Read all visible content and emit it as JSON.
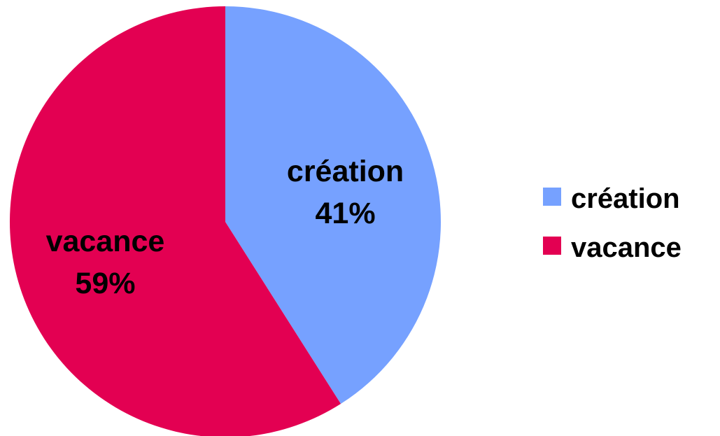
{
  "chart_data": {
    "type": "pie",
    "title": "",
    "slices": [
      {
        "label": "création",
        "value": 41,
        "value_label": "41%",
        "color": "#76A1FF"
      },
      {
        "label": "vacance",
        "value": 59,
        "value_label": "59%",
        "color": "#E30052"
      }
    ],
    "start_angle_deg": 0,
    "direction": "clockwise",
    "legend": {
      "position": "right",
      "entries": [
        "création",
        "vacance"
      ]
    }
  }
}
